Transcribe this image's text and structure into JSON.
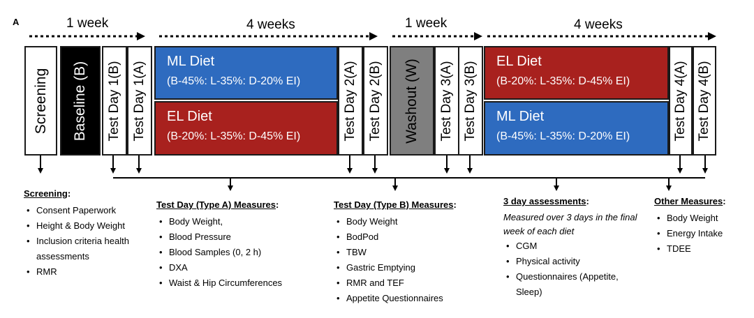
{
  "panel_label": "A",
  "durations": [
    "1 week",
    "4 weeks",
    "1 week",
    "4 weeks"
  ],
  "phases": {
    "screening": "Screening",
    "baseline": "Baseline (B)",
    "td1b": "Test Day 1(B)",
    "td1a": "Test Day 1(A)",
    "td2a": "Test Day 2(A)",
    "td2b": "Test Day 2(B)",
    "washout": "Washout (W)",
    "td3a": "Test Day 3(A)",
    "td3b": "Test Day 3(B)",
    "td4a": "Test Day 4(A)",
    "td4b": "Test Day 4(B)"
  },
  "diets": {
    "period1_top": {
      "name": "ML Diet",
      "ratio": "(B-45%: L-35%: D-20% EI)"
    },
    "period1_bottom": {
      "name": "EL Diet",
      "ratio": "(B-20%: L-35%: D-45% EI)"
    },
    "period2_top": {
      "name": "EL Diet",
      "ratio": "(B-20%: L-35%: D-45% EI)"
    },
    "period2_bottom": {
      "name": "ML Diet",
      "ratio": "(B-45%: L-35%: D-20% EI)"
    }
  },
  "colors": {
    "ml_diet": "#2e6bbf",
    "el_diet": "#a8211e",
    "baseline": "#000000",
    "washout": "#7f7f7f"
  },
  "sections": {
    "screening": {
      "title": "Screening",
      "items": [
        "Consent Paperwork",
        "Height & Body Weight",
        "Inclusion criteria health assessments",
        "RMR"
      ]
    },
    "type_a": {
      "title": "Test Day (Type  A) Measures",
      "items": [
        "Body Weight,",
        "Blood Pressure",
        "Blood Samples (0, 2 h)",
        "DXA",
        "Waist & Hip Circumferences"
      ]
    },
    "type_b": {
      "title": "Test Day (Type B) Measures",
      "items": [
        "Body Weight",
        "BodPod",
        "TBW",
        "Gastric Emptying",
        "RMR and TEF",
        "Appetite Questionnaires"
      ]
    },
    "three_day": {
      "title": "3 day assessments",
      "note": "Measured over 3 days in the final week of each diet",
      "items": [
        "CGM",
        "Physical activity",
        "Questionnaires (Appetite, Sleep)"
      ]
    },
    "other": {
      "title": "Other Measures",
      "items": [
        "Body Weight",
        "Energy Intake",
        "TDEE"
      ]
    }
  }
}
